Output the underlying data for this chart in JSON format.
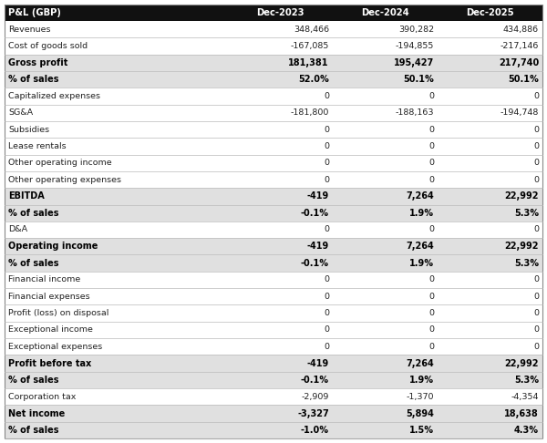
{
  "header": [
    "P&L (GBP)",
    "Dec-2023",
    "Dec-2024",
    "Dec-2025"
  ],
  "rows": [
    {
      "label": "Revenues",
      "vals": [
        "348,466",
        "390,282",
        "434,886"
      ],
      "bold": false,
      "shaded": false
    },
    {
      "label": "Cost of goods sold",
      "vals": [
        "-167,085",
        "-194,855",
        "-217,146"
      ],
      "bold": false,
      "shaded": false
    },
    {
      "label": "Gross profit",
      "vals": [
        "181,381",
        "195,427",
        "217,740"
      ],
      "bold": true,
      "shaded": true
    },
    {
      "label": "% of sales",
      "vals": [
        "52.0%",
        "50.1%",
        "50.1%"
      ],
      "bold": true,
      "shaded": true
    },
    {
      "label": "Capitalized expenses",
      "vals": [
        "0",
        "0",
        "0"
      ],
      "bold": false,
      "shaded": false
    },
    {
      "label": "SG&A",
      "vals": [
        "-181,800",
        "-188,163",
        "-194,748"
      ],
      "bold": false,
      "shaded": false
    },
    {
      "label": "Subsidies",
      "vals": [
        "0",
        "0",
        "0"
      ],
      "bold": false,
      "shaded": false
    },
    {
      "label": "Lease rentals",
      "vals": [
        "0",
        "0",
        "0"
      ],
      "bold": false,
      "shaded": false
    },
    {
      "label": "Other operating income",
      "vals": [
        "0",
        "0",
        "0"
      ],
      "bold": false,
      "shaded": false
    },
    {
      "label": "Other operating expenses",
      "vals": [
        "0",
        "0",
        "0"
      ],
      "bold": false,
      "shaded": false
    },
    {
      "label": "EBITDA",
      "vals": [
        "-419",
        "7,264",
        "22,992"
      ],
      "bold": true,
      "shaded": true
    },
    {
      "label": "% of sales",
      "vals": [
        "-0.1%",
        "1.9%",
        "5.3%"
      ],
      "bold": true,
      "shaded": true
    },
    {
      "label": "D&A",
      "vals": [
        "0",
        "0",
        "0"
      ],
      "bold": false,
      "shaded": false
    },
    {
      "label": "Operating income",
      "vals": [
        "-419",
        "7,264",
        "22,992"
      ],
      "bold": true,
      "shaded": true
    },
    {
      "label": "% of sales",
      "vals": [
        "-0.1%",
        "1.9%",
        "5.3%"
      ],
      "bold": true,
      "shaded": true
    },
    {
      "label": "Financial income",
      "vals": [
        "0",
        "0",
        "0"
      ],
      "bold": false,
      "shaded": false
    },
    {
      "label": "Financial expenses",
      "vals": [
        "0",
        "0",
        "0"
      ],
      "bold": false,
      "shaded": false
    },
    {
      "label": "Profit (loss) on disposal",
      "vals": [
        "0",
        "0",
        "0"
      ],
      "bold": false,
      "shaded": false
    },
    {
      "label": "Exceptional income",
      "vals": [
        "0",
        "0",
        "0"
      ],
      "bold": false,
      "shaded": false
    },
    {
      "label": "Exceptional expenses",
      "vals": [
        "0",
        "0",
        "0"
      ],
      "bold": false,
      "shaded": false
    },
    {
      "label": "Profit before tax",
      "vals": [
        "-419",
        "7,264",
        "22,992"
      ],
      "bold": true,
      "shaded": true
    },
    {
      "label": "% of sales",
      "vals": [
        "-0.1%",
        "1.9%",
        "5.3%"
      ],
      "bold": true,
      "shaded": true
    },
    {
      "label": "Corporation tax",
      "vals": [
        "-2,909",
        "-1,370",
        "-4,354"
      ],
      "bold": false,
      "shaded": false
    },
    {
      "label": "Net income",
      "vals": [
        "-3,327",
        "5,894",
        "18,638"
      ],
      "bold": true,
      "shaded": true
    },
    {
      "label": "% of sales",
      "vals": [
        "-1.0%",
        "1.5%",
        "4.3%"
      ],
      "bold": true,
      "shaded": true
    }
  ],
  "header_bg": "#111111",
  "header_fg": "#ffffff",
  "shaded_bg": "#e0e0e0",
  "normal_bg": "#ffffff",
  "bold_fg": "#000000",
  "normal_fg": "#222222",
  "font_size": 6.8,
  "bold_font_size": 7.0,
  "header_font_size": 7.2
}
